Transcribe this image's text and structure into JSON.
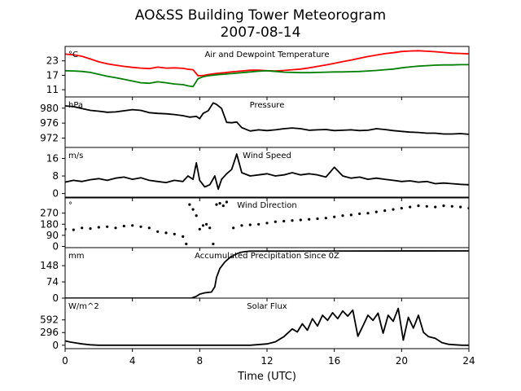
{
  "figure": {
    "title_line1": "AO&SS Building Tower Meteorogram",
    "title_line2": "2007-08-14",
    "xlabel": "Time (UTC)"
  },
  "chart_data": [
    {
      "type": "line",
      "title": "Air and Dewpoint Temperature",
      "unit": "°C",
      "xlim": [
        0,
        24
      ],
      "ylim": [
        8,
        29
      ],
      "yticks": [
        11,
        17,
        23
      ],
      "series": [
        {
          "color": "#ff0000",
          "x": [
            0,
            0.5,
            1,
            1.5,
            2,
            2.5,
            3,
            3.5,
            4,
            4.5,
            5,
            5.5,
            6,
            6.5,
            7,
            7.3,
            7.6,
            7.9,
            8.2,
            8.5,
            9,
            9.5,
            10,
            10.5,
            11,
            11.5,
            12,
            12.5,
            13,
            13.5,
            14,
            14.5,
            15,
            15.5,
            16,
            16.5,
            17,
            17.5,
            18,
            18.5,
            19,
            19.5,
            20,
            20.5,
            21,
            21.5,
            22,
            22.5,
            23,
            23.5,
            24
          ],
          "y": [
            25.8,
            25.5,
            24.9,
            23.8,
            22.6,
            21.8,
            21.2,
            20.7,
            20.3,
            20.0,
            19.8,
            20.4,
            20.0,
            20.1,
            19.9,
            19.5,
            19.3,
            16.8,
            16.9,
            17.3,
            17.8,
            18.1,
            18.5,
            18.8,
            19.1,
            19.1,
            18.9,
            18.8,
            19.0,
            19.3,
            19.6,
            20.1,
            20.7,
            21.3,
            22.0,
            22.7,
            23.3,
            24.1,
            24.8,
            25.4,
            26.0,
            26.4,
            26.9,
            27.1,
            27.2,
            27.0,
            26.8,
            26.5,
            26.2,
            26.1,
            25.9
          ]
        },
        {
          "color": "#008000",
          "x": [
            0,
            0.5,
            1,
            1.5,
            2,
            2.5,
            3,
            3.5,
            4,
            4.5,
            5,
            5.5,
            6,
            6.5,
            7,
            7.3,
            7.6,
            7.9,
            8.2,
            8.5,
            9,
            9.5,
            10,
            10.5,
            11,
            11.5,
            12,
            12.5,
            13,
            13.5,
            14,
            14.5,
            15,
            15.5,
            16,
            16.5,
            17,
            17.5,
            18,
            18.5,
            19,
            19.5,
            20,
            20.5,
            21,
            21.5,
            22,
            22.5,
            23,
            23.5,
            24
          ],
          "y": [
            18.9,
            18.8,
            18.6,
            18.2,
            17.4,
            16.6,
            16.0,
            15.3,
            14.6,
            13.9,
            13.7,
            14.3,
            13.9,
            13.4,
            13.1,
            12.6,
            12.3,
            15.6,
            16.4,
            16.8,
            17.2,
            17.5,
            17.8,
            18.1,
            18.4,
            18.7,
            18.9,
            18.6,
            18.3,
            18.2,
            18.1,
            18.1,
            18.2,
            18.3,
            18.4,
            18.4,
            18.5,
            18.6,
            18.8,
            19.0,
            19.3,
            19.6,
            20.1,
            20.5,
            20.8,
            21.0,
            21.2,
            21.3,
            21.3,
            21.4,
            21.4
          ]
        }
      ]
    },
    {
      "type": "line",
      "title": "Pressure",
      "unit": "hPa",
      "xlim": [
        0,
        24
      ],
      "ylim": [
        969.5,
        983
      ],
      "yticks": [
        972,
        976,
        980
      ],
      "series": [
        {
          "color": "#000000",
          "x": [
            0,
            0.5,
            1,
            1.5,
            2,
            2.5,
            3,
            3.5,
            4,
            4.5,
            5,
            5.5,
            6,
            6.5,
            7,
            7.4,
            7.8,
            8.0,
            8.2,
            8.5,
            8.8,
            9.0,
            9.3,
            9.6,
            9.9,
            10.2,
            10.5,
            11,
            11.5,
            12,
            12.5,
            13,
            13.5,
            14,
            14.5,
            15,
            15.5,
            16,
            16.5,
            17,
            17.5,
            18,
            18.5,
            19,
            19.5,
            20,
            20.5,
            21,
            21.5,
            22,
            22.5,
            23,
            23.5,
            24
          ],
          "y": [
            980.6,
            980.4,
            979.9,
            979.4,
            979.2,
            978.9,
            979.0,
            979.3,
            979.6,
            979.4,
            978.8,
            978.6,
            978.5,
            978.3,
            978.0,
            977.6,
            977.8,
            977.2,
            978.6,
            979.3,
            981.4,
            981.0,
            979.9,
            976.2,
            976.1,
            976.3,
            974.8,
            973.9,
            974.2,
            974.0,
            974.2,
            974.5,
            974.7,
            974.5,
            974.1,
            974.2,
            974.3,
            974.0,
            974.1,
            974.2,
            974.0,
            974.1,
            974.5,
            974.3,
            974.0,
            973.8,
            973.6,
            973.5,
            973.3,
            973.3,
            973.1,
            973.1,
            973.2,
            973.0
          ]
        }
      ]
    },
    {
      "type": "line",
      "title": "Wind Speed",
      "unit": "m/s",
      "xlim": [
        0,
        24
      ],
      "ylim": [
        -2,
        21
      ],
      "yticks": [
        0,
        8,
        16
      ],
      "series": [
        {
          "color": "#000000",
          "x": [
            0,
            0.5,
            1,
            1.5,
            2,
            2.5,
            3,
            3.5,
            4,
            4.5,
            5,
            5.5,
            6,
            6.5,
            7,
            7.3,
            7.6,
            7.8,
            8.0,
            8.3,
            8.6,
            8.9,
            9.1,
            9.3,
            9.6,
            9.9,
            10.2,
            10.5,
            11,
            11.5,
            12,
            12.5,
            13,
            13.5,
            14,
            14.5,
            15,
            15.5,
            16,
            16.5,
            17,
            17.5,
            18,
            18.5,
            19,
            19.5,
            20,
            20.5,
            21,
            21.5,
            22,
            22.5,
            23,
            23.5,
            24
          ],
          "y": [
            5.2,
            6.0,
            5.5,
            6.3,
            6.8,
            6.0,
            7.0,
            7.5,
            6.5,
            7.2,
            6.0,
            5.5,
            5.0,
            6.0,
            5.5,
            8.0,
            6.5,
            14.0,
            6.0,
            3.0,
            4.0,
            8.0,
            2.0,
            6.5,
            9.0,
            11.0,
            18.0,
            9.5,
            8.0,
            8.5,
            9.0,
            8.0,
            8.5,
            9.5,
            8.5,
            9.0,
            8.5,
            7.5,
            12.0,
            8.0,
            7.0,
            7.5,
            6.5,
            7.0,
            6.5,
            6.0,
            5.5,
            5.8,
            5.2,
            5.5,
            4.5,
            4.8,
            4.5,
            4.2,
            4.0
          ]
        }
      ]
    },
    {
      "type": "scatter",
      "title": "Wind Direction",
      "unit": "°",
      "xlim": [
        0,
        24
      ],
      "ylim": [
        -10,
        400
      ],
      "yticks": [
        0,
        90,
        180,
        270
      ],
      "series": [
        {
          "color": "#000000",
          "x": [
            0,
            0.5,
            1,
            1.5,
            2,
            2.5,
            3,
            3.5,
            4,
            4.5,
            5,
            5.5,
            6,
            6.5,
            7,
            7.2,
            7.4,
            7.6,
            7.8,
            8.0,
            8.2,
            8.4,
            8.6,
            8.8,
            9.0,
            9.2,
            9.4,
            9.6,
            10.0,
            10.5,
            11,
            11.5,
            12,
            12.5,
            13,
            13.5,
            14,
            14.5,
            15,
            15.5,
            16,
            16.5,
            17,
            17.5,
            18,
            18.5,
            19,
            19.5,
            20,
            20.5,
            21,
            21.5,
            22,
            22.5,
            23,
            23.5,
            24
          ],
          "y": [
            140,
            135,
            150,
            145,
            155,
            160,
            150,
            165,
            170,
            160,
            150,
            120,
            110,
            100,
            80,
            20,
            340,
            300,
            250,
            140,
            170,
            180,
            150,
            20,
            340,
            350,
            330,
            360,
            150,
            170,
            175,
            180,
            190,
            200,
            205,
            210,
            215,
            220,
            225,
            230,
            240,
            250,
            255,
            265,
            270,
            280,
            290,
            300,
            310,
            320,
            330,
            325,
            320,
            330,
            325,
            320,
            310
          ]
        }
      ]
    },
    {
      "type": "line",
      "title": "Accumulated Precipitation Since 0Z",
      "unit": "mm",
      "xlim": [
        0,
        24
      ],
      "ylim": [
        0,
        230
      ],
      "yticks": [
        0,
        74,
        148
      ],
      "series": [
        {
          "color": "#000000",
          "x": [
            0,
            7.5,
            7.8,
            8.0,
            8.3,
            8.7,
            8.9,
            9.0,
            9.2,
            9.5,
            9.8,
            10.1,
            10.4,
            10.7,
            11.0,
            24
          ],
          "y": [
            0,
            0,
            8,
            18,
            24,
            28,
            52,
            95,
            135,
            165,
            185,
            198,
            208,
            212,
            214,
            215
          ]
        }
      ]
    },
    {
      "type": "line",
      "title": "Solar Flux",
      "unit": "W/m^2",
      "xlim": [
        0,
        24
      ],
      "ylim": [
        -80,
        1100
      ],
      "yticks": [
        0,
        296,
        592
      ],
      "series": [
        {
          "color": "#000000",
          "x": [
            0,
            0.3,
            0.6,
            1.0,
            1.5,
            2,
            3,
            4,
            5,
            6,
            7,
            8,
            9,
            10,
            11,
            12,
            12.5,
            13,
            13.5,
            13.8,
            14.1,
            14.4,
            14.7,
            15.0,
            15.3,
            15.6,
            15.9,
            16.2,
            16.5,
            16.8,
            17.1,
            17.4,
            17.7,
            18.0,
            18.3,
            18.6,
            18.9,
            19.2,
            19.5,
            19.8,
            20.1,
            20.4,
            20.7,
            21.0,
            21.3,
            21.6,
            22.0,
            22.4,
            22.8,
            23.2,
            23.6,
            24
          ],
          "y": [
            100,
            75,
            55,
            30,
            10,
            0,
            0,
            0,
            0,
            0,
            0,
            0,
            0,
            0,
            0,
            30,
            80,
            200,
            380,
            310,
            500,
            350,
            620,
            450,
            700,
            580,
            760,
            620,
            800,
            680,
            820,
            210,
            450,
            700,
            580,
            750,
            280,
            700,
            560,
            860,
            120,
            650,
            400,
            700,
            300,
            200,
            160,
            60,
            20,
            10,
            0,
            0
          ]
        }
      ]
    }
  ],
  "xaxis": {
    "ticks": [
      0,
      4,
      8,
      12,
      16,
      20,
      24
    ],
    "tick_labels": [
      "0",
      "4",
      "8",
      "12",
      "16",
      "20",
      "24"
    ]
  }
}
